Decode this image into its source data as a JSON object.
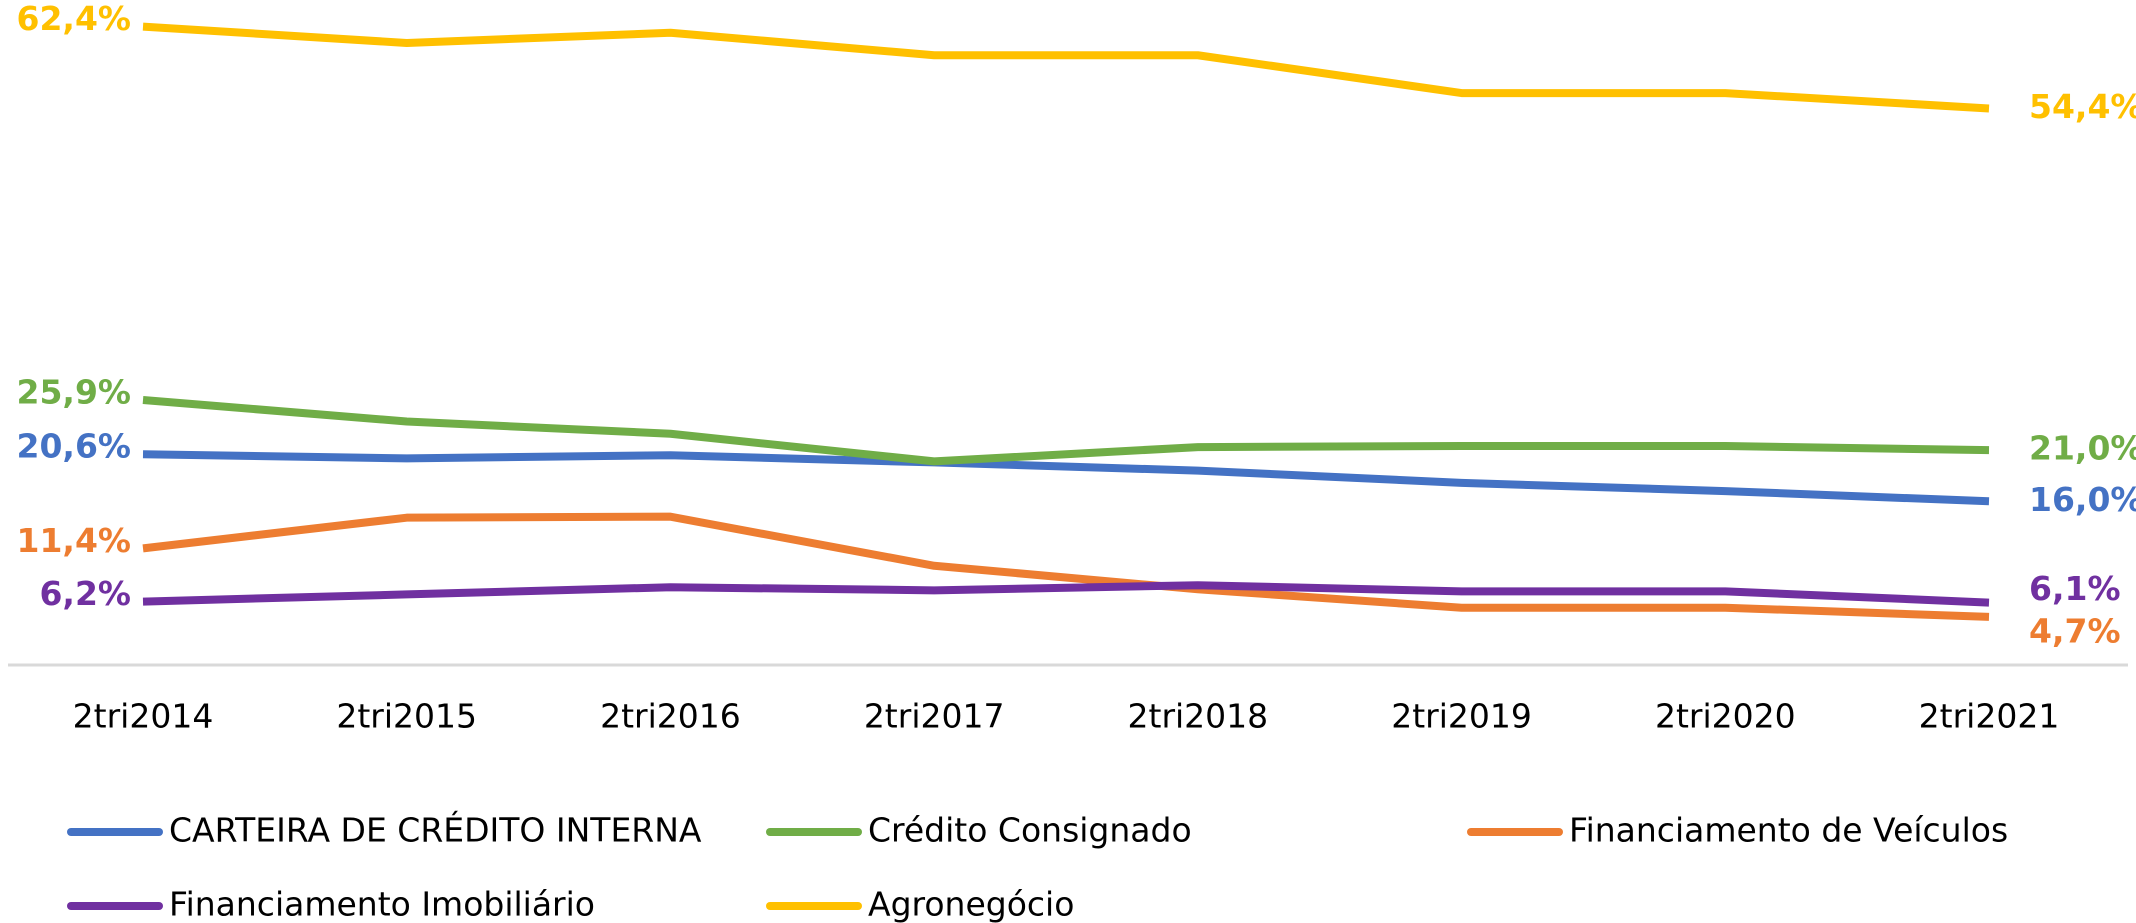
{
  "chart_data": {
    "type": "line",
    "categories": [
      "2tri2014",
      "2tri2015",
      "2tri2016",
      "2tri2017",
      "2tri2018",
      "2tri2019",
      "2tri2020",
      "2tri2021"
    ],
    "ylim": [
      0,
      65
    ],
    "series": [
      {
        "name": "CARTEIRA DE CRÉDITO INTERNA",
        "color": "#4472c4",
        "values": [
          20.6,
          20.2,
          20.5,
          19.8,
          19.0,
          17.8,
          17.0,
          16.0
        ],
        "value_labels": [
          "20,6%",
          null,
          null,
          null,
          null,
          null,
          null,
          "16,0%"
        ]
      },
      {
        "name": "Crédito Consignado",
        "color": "#70ad47",
        "values": [
          25.9,
          23.8,
          22.6,
          19.9,
          21.3,
          21.4,
          21.4,
          21.0
        ],
        "value_labels": [
          "25,9%",
          null,
          null,
          null,
          null,
          null,
          null,
          "21,0%"
        ]
      },
      {
        "name": "Financiamento de Veículos",
        "color": "#ed7d31",
        "values": [
          11.4,
          14.4,
          14.5,
          9.7,
          7.4,
          5.6,
          5.6,
          4.7
        ],
        "value_labels": [
          "11,4%",
          null,
          null,
          null,
          null,
          null,
          null,
          "4,7%"
        ]
      },
      {
        "name": "Financiamento Imobiliário",
        "color": "#7030a0",
        "values": [
          6.2,
          6.9,
          7.6,
          7.3,
          7.8,
          7.2,
          7.2,
          6.1
        ],
        "value_labels": [
          "6,2%",
          null,
          null,
          null,
          null,
          null,
          null,
          "6,1%"
        ]
      },
      {
        "name": "Agronegócio",
        "color": "#ffc000",
        "values": [
          62.4,
          60.8,
          61.8,
          59.6,
          59.6,
          55.9,
          55.9,
          54.4
        ],
        "value_labels": [
          "62,4%",
          null,
          null,
          null,
          null,
          null,
          null,
          "54,4%"
        ]
      }
    ]
  }
}
